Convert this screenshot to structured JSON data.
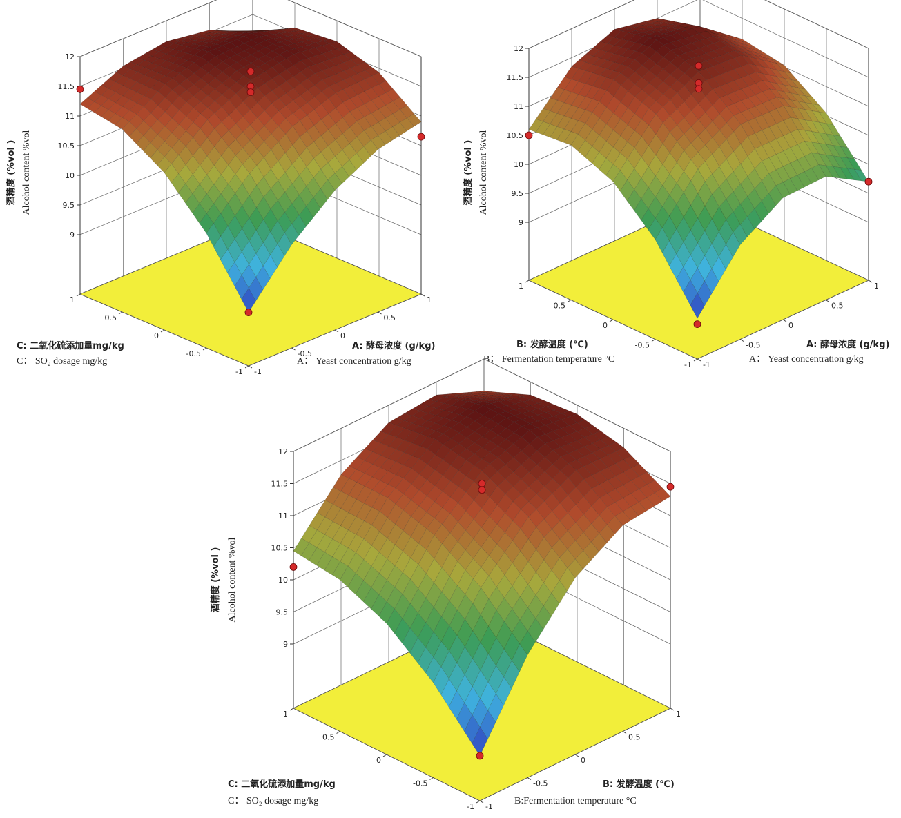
{
  "chart_data": [
    {
      "type": "surface3d",
      "x_label": [
        "A: 酵母浓度 (g/kg)",
        "A：  Yeast concentration g/kg"
      ],
      "y_label": [
        "C: 二氧化硫添加量mg/kg",
        "C：  SO₂ dosage mg/kg"
      ],
      "z_label": [
        "酒精度 (%vol )",
        "Alcohol content %vol"
      ],
      "xlim": [
        -1,
        1
      ],
      "ylim": [
        -1,
        1
      ],
      "zlim": [
        8,
        12
      ],
      "xticks": [
        -1,
        -0.5,
        0,
        0.5,
        1
      ],
      "yticks": [
        -1,
        -0.5,
        0,
        0.5,
        1
      ],
      "zticks": [
        9,
        9.5,
        10,
        10.5,
        11,
        11.5,
        12
      ],
      "surface": {
        "x": [
          -1,
          -0.5,
          0,
          0.5,
          1
        ],
        "y": [
          -1,
          -0.5,
          0,
          0.5,
          1
        ],
        "z": [
          [
            8.9,
            9.93,
            10.65,
            11.08,
            11.2
          ],
          [
            9.74,
            10.64,
            11.24,
            11.54,
            11.54
          ],
          [
            10.35,
            11.13,
            11.6,
            11.78,
            11.65
          ],
          [
            10.74,
            11.39,
            11.74,
            11.79,
            11.54
          ],
          [
            10.9,
            11.43,
            11.65,
            11.58,
            11.2
          ]
        ]
      },
      "points": {
        "x": [
          -1,
          0,
          0,
          0,
          1,
          -1
        ],
        "y": [
          1,
          0,
          0,
          0,
          -1,
          -1
        ],
        "z": [
          11.45,
          11.75,
          11.5,
          11.4,
          10.65,
          8.9
        ]
      },
      "colormap": [
        "#2f3fbf",
        "#3fb3df",
        "#3c9c55",
        "#a8a83c",
        "#b04a2c",
        "#5a1212"
      ],
      "floor_color": "#f2ee3a",
      "point_color": "#d42a2a",
      "grid": true
    },
    {
      "type": "surface3d",
      "x_label": [
        "A: 酵母浓度 (g/kg)",
        "A：  Yeast concentration g/kg"
      ],
      "y_label": [
        "B: 发酵温度 (℃)",
        "B：  Fermentation temperature °C"
      ],
      "z_label": [
        "酒精度 (%vol )",
        "Alcohol content %vol"
      ],
      "xlim": [
        -1,
        1
      ],
      "ylim": [
        -1,
        1
      ],
      "zlim": [
        8,
        12
      ],
      "xticks": [
        -1,
        -0.5,
        0,
        0.5,
        1
      ],
      "yticks": [
        -1,
        -0.5,
        0,
        0.5,
        1
      ],
      "zticks": [
        9,
        9.5,
        10,
        10.5,
        11,
        11.5,
        12
      ],
      "surface": {
        "x": [
          -1,
          -0.5,
          0,
          0.5,
          1
        ],
        "y": [
          -1,
          -0.5,
          0,
          0.5,
          1
        ],
        "z": [
          [
            8.7,
            9.72,
            10.38,
            10.67,
            10.6
          ],
          [
            9.63,
            10.6,
            11.21,
            11.46,
            11.35
          ],
          [
            10.1,
            11.03,
            11.6,
            11.81,
            11.65
          ],
          [
            10.13,
            11.01,
            11.54,
            11.7,
            11.5
          ],
          [
            9.7,
            10.54,
            11.03,
            11.14,
            10.9
          ]
        ]
      },
      "points": {
        "x": [
          -1,
          0,
          0,
          0,
          1,
          -1
        ],
        "y": [
          1,
          0,
          0,
          0,
          -1,
          -1
        ],
        "z": [
          10.5,
          11.7,
          11.4,
          11.3,
          9.7,
          8.6
        ]
      },
      "colormap": [
        "#2f3fbf",
        "#3fb3df",
        "#3c9c55",
        "#a8a83c",
        "#b04a2c",
        "#5a1212"
      ],
      "floor_color": "#f2ee3a",
      "point_color": "#d42a2a",
      "grid": true
    },
    {
      "type": "surface3d",
      "x_label": [
        "B: 发酵温度 (℃)",
        "B:Fermentation temperature °C"
      ],
      "y_label": [
        "C: 二氧化硫添加量mg/kg",
        "C：  SO₂ dosage mg/kg"
      ],
      "z_label": [
        "酒精度 (%vol )",
        "Alcohol content %vol"
      ],
      "xlim": [
        -1,
        1
      ],
      "ylim": [
        -1,
        1
      ],
      "zlim": [
        8,
        12
      ],
      "xticks": [
        -1,
        -0.5,
        0,
        0.5,
        1
      ],
      "yticks": [
        -1,
        -0.5,
        0,
        0.5,
        1
      ],
      "zticks": [
        9,
        9.5,
        10,
        10.5,
        11,
        11.5,
        12
      ],
      "surface": {
        "x": [
          -1,
          -0.5,
          0,
          0.5,
          1
        ],
        "y": [
          -1,
          -0.5,
          0,
          0.5,
          1
        ],
        "z": [
          [
            8.7,
            9.48,
            10.04,
            10.36,
            10.45
          ],
          [
            9.91,
            10.6,
            11.06,
            11.28,
            11.28
          ],
          [
            10.75,
            11.34,
            11.7,
            11.83,
            11.73
          ],
          [
            11.21,
            11.71,
            11.97,
            12.0,
            11.8
          ],
          [
            11.3,
            11.7,
            11.86,
            11.8,
            11.5
          ]
        ]
      },
      "points": {
        "x": [
          -1,
          0,
          0,
          1,
          -1
        ],
        "y": [
          1,
          0,
          0,
          -1,
          -1
        ],
        "z": [
          10.2,
          11.5,
          11.4,
          11.45,
          8.7
        ]
      },
      "colormap": [
        "#2f3fbf",
        "#3fb3df",
        "#3c9c55",
        "#a8a83c",
        "#b04a2c",
        "#5a1212"
      ],
      "floor_color": "#f2ee3a",
      "point_color": "#d42a2a",
      "grid": true
    }
  ]
}
